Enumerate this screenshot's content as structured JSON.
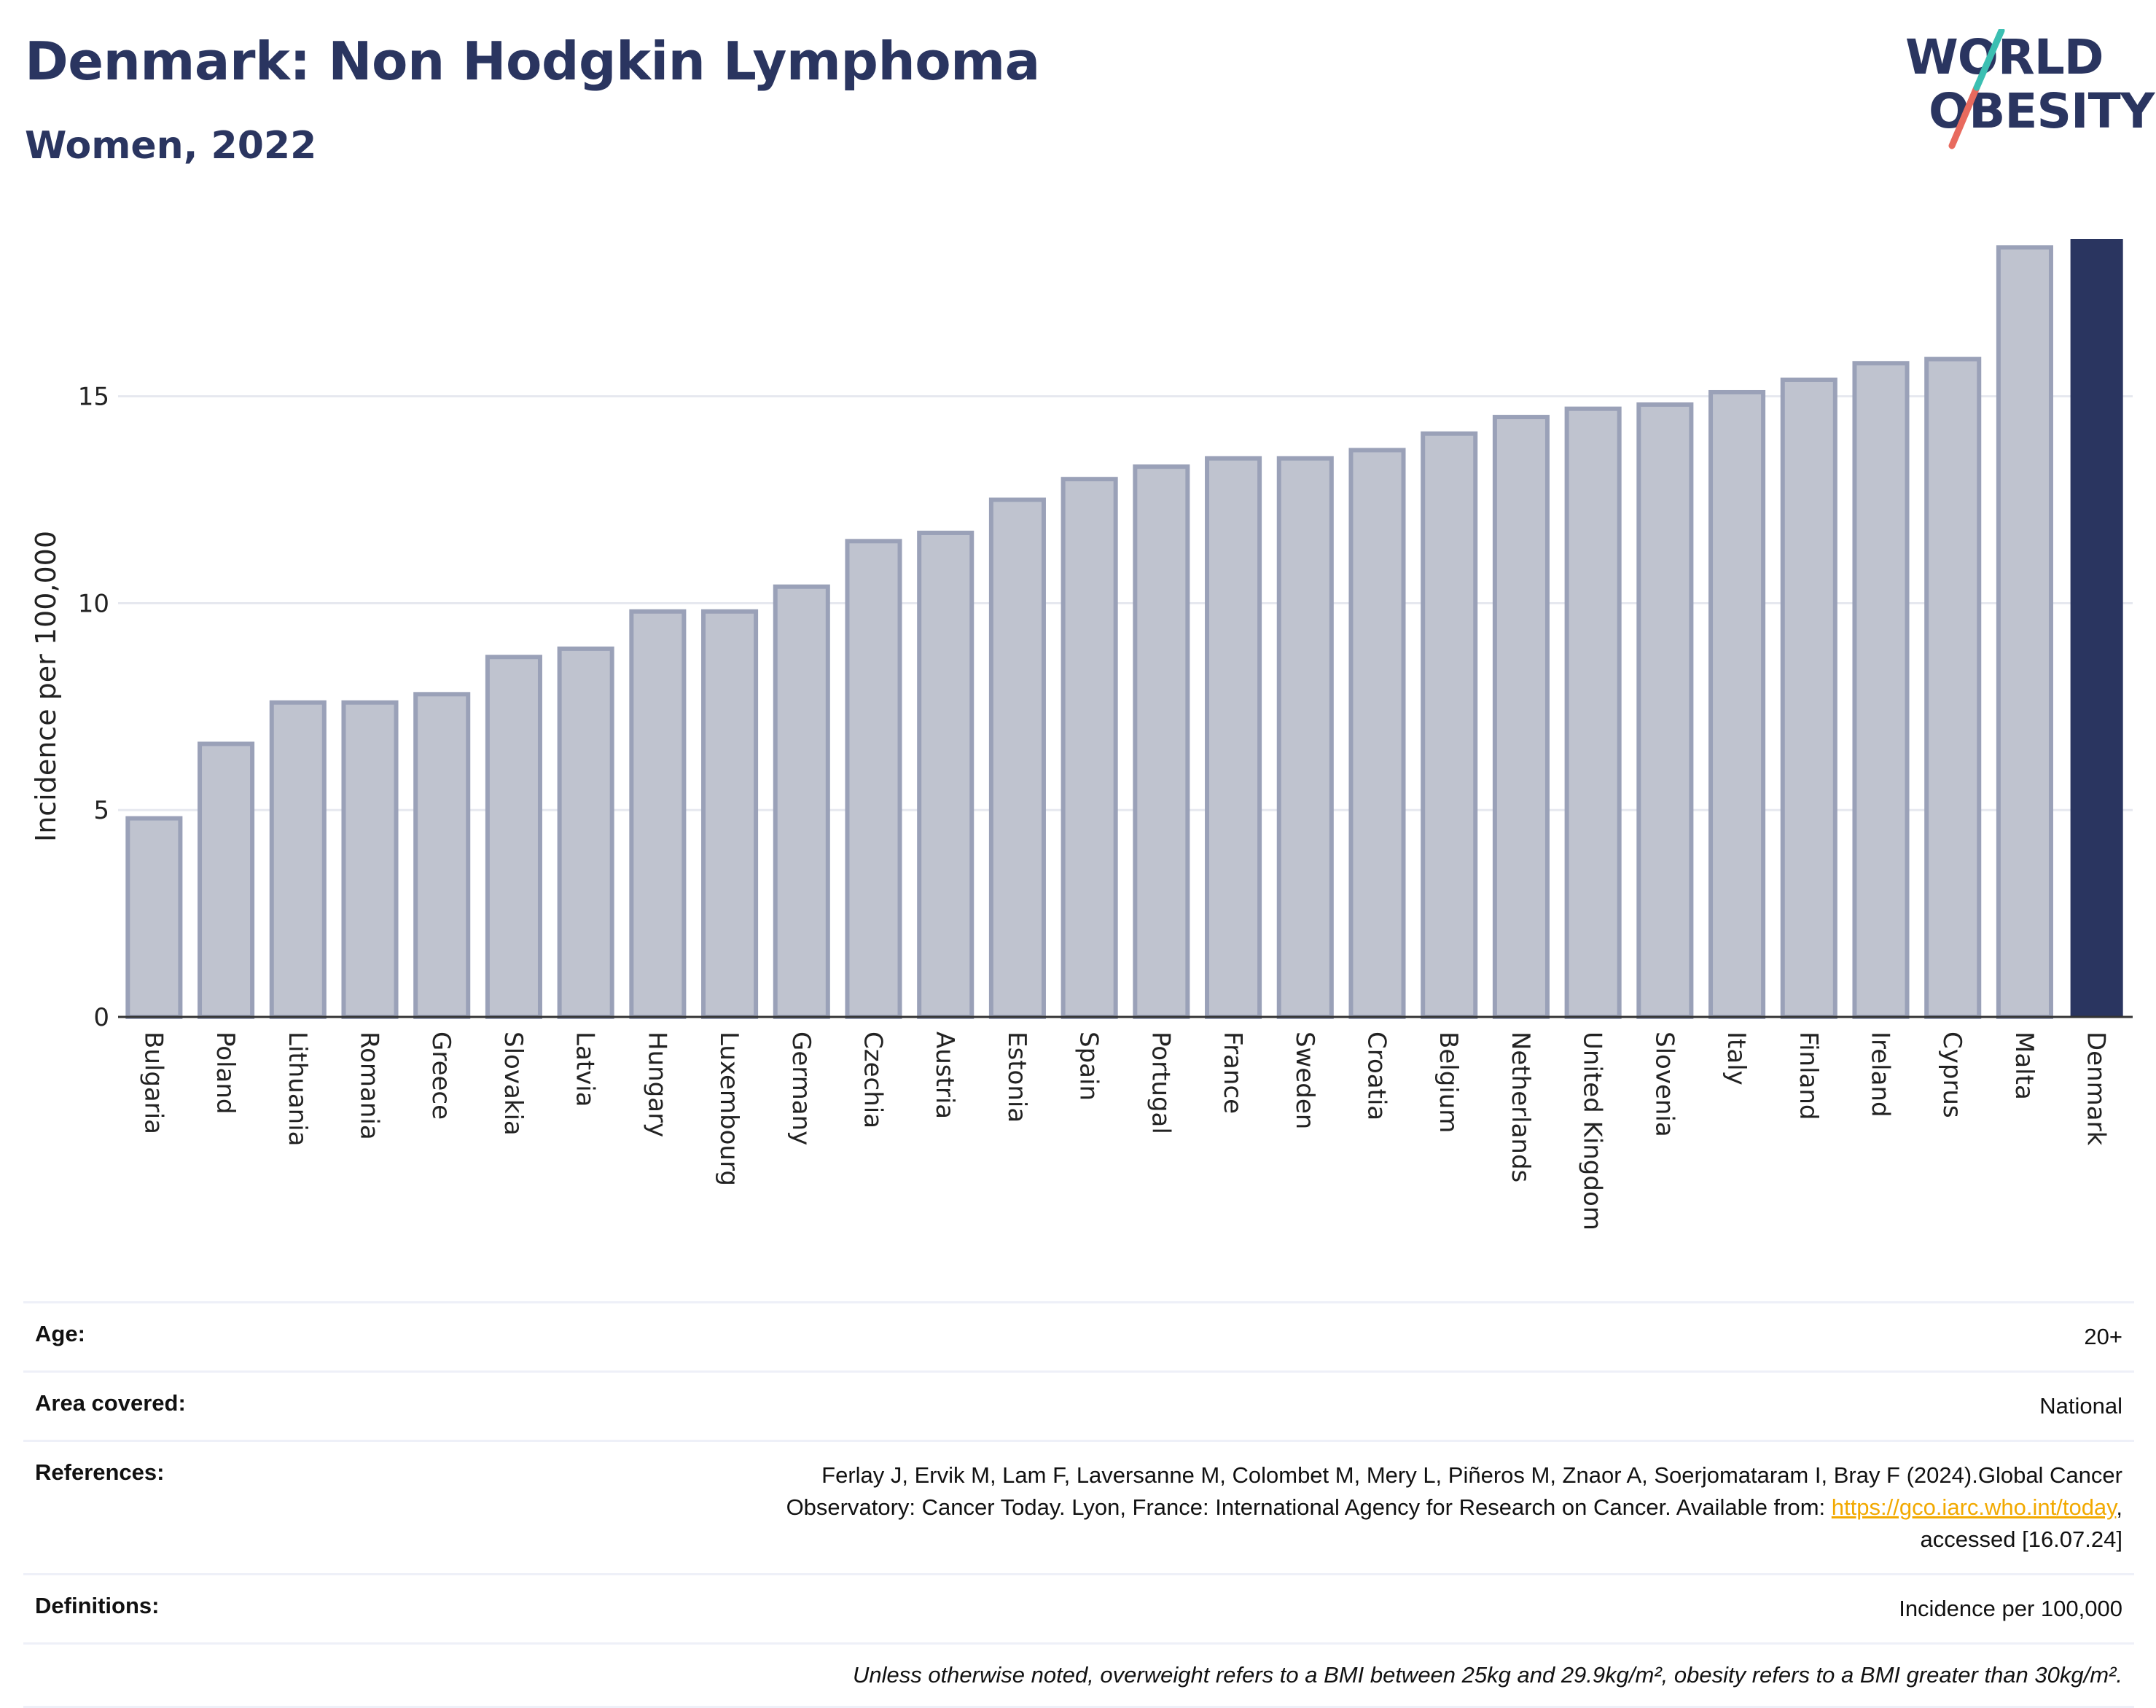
{
  "header": {
    "title": "Denmark: Non Hodgkin Lymphoma",
    "subtitle": "Women, 2022"
  },
  "logo": {
    "line1": "WORLD",
    "line2": "OBESITY"
  },
  "chart_data": {
    "type": "bar",
    "title": "",
    "xlabel": "",
    "ylabel": "Incidence per 100,000",
    "ylim": [
      0,
      18.8
    ],
    "yticks": [
      0,
      5,
      10,
      15
    ],
    "grid": true,
    "highlight": "Denmark",
    "colors": {
      "bar": "#bfc3cf",
      "bar_border": "#9aa1b8",
      "highlight": "#2a3560"
    },
    "categories": [
      "Bulgaria",
      "Poland",
      "Lithuania",
      "Romania",
      "Greece",
      "Slovakia",
      "Latvia",
      "Hungary",
      "Luxembourg",
      "Germany",
      "Czechia",
      "Austria",
      "Estonia",
      "Spain",
      "Portugal",
      "France",
      "Sweden",
      "Croatia",
      "Belgium",
      "Netherlands",
      "United Kingdom",
      "Slovenia",
      "Italy",
      "Finland",
      "Ireland",
      "Cyprus",
      "Malta",
      "Denmark"
    ],
    "values": [
      4.8,
      6.6,
      7.6,
      7.6,
      7.8,
      8.7,
      8.9,
      9.8,
      9.8,
      10.4,
      11.5,
      11.7,
      12.5,
      13.0,
      13.3,
      13.5,
      13.5,
      13.7,
      14.1,
      14.5,
      14.7,
      14.8,
      15.1,
      15.4,
      15.8,
      15.9,
      18.6,
      18.8
    ]
  },
  "meta": {
    "age_label": "Age:",
    "age_value": "20+",
    "area_label": "Area covered:",
    "area_value": "National",
    "ref_label": "References:",
    "ref_text_1": "Ferlay J, Ervik M, Lam F, Laversanne M, Colombet M, Mery L, Piñeros M, Znaor A, Soerjomataram I, Bray F (2024).Global Cancer",
    "ref_text_2": "Observatory: Cancer Today. Lyon, France: International Agency for Research on Cancer. Available from: ",
    "ref_link": "https://gco.iarc.who.int/today",
    "ref_text_3": ",",
    "ref_text_4": "accessed [16.07.24]",
    "def_label": "Definitions:",
    "def_value": "Incidence per 100,000",
    "note": "Unless otherwise noted, overweight refers to a BMI between 25kg and 29.9kg/m², obesity refers to a BMI greater than 30kg/m²."
  }
}
